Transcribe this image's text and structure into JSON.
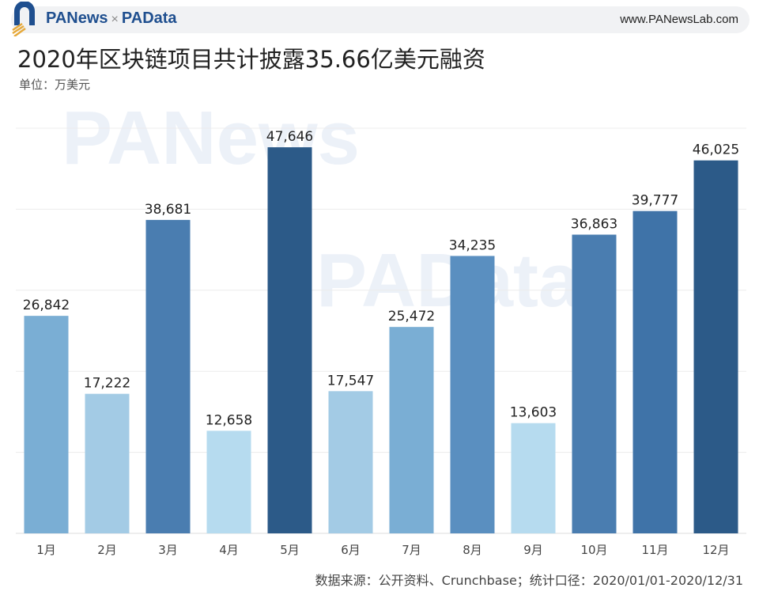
{
  "header": {
    "brand_left": "PANews",
    "brand_sep": "×",
    "brand_right": "PAData",
    "site": "www.PANewsLab.com"
  },
  "watermarks": [
    "PANews",
    "PAData"
  ],
  "footer": {
    "source": "数据来源：公开资料、Crunchbase；统计口径：2020/01/01-2020/12/31"
  },
  "chart_data": {
    "type": "bar",
    "title": "2020年区块链项目共计披露35.66亿美元融资",
    "subtitle": "单位：万美元",
    "categories": [
      "1月",
      "2月",
      "3月",
      "4月",
      "5月",
      "6月",
      "7月",
      "8月",
      "9月",
      "10月",
      "11月",
      "12月"
    ],
    "values": [
      26842,
      17222,
      38681,
      12658,
      47646,
      17547,
      25472,
      34235,
      13603,
      36863,
      39777,
      46025
    ],
    "data_labels": [
      "26,842",
      "17,222",
      "38,681",
      "12,658",
      "47,646",
      "17,547",
      "25,472",
      "34,235",
      "13,603",
      "36,863",
      "39,777",
      "46,025"
    ],
    "colors": [
      "#7aaed4",
      "#a3cbe5",
      "#4a7db0",
      "#b6dbef",
      "#2c5a88",
      "#a3cbe5",
      "#7aaed4",
      "#5a8fc0",
      "#b6dbef",
      "#4a7db0",
      "#3f73a8",
      "#2c5a88"
    ],
    "ylim": [
      0,
      50000
    ],
    "grid": true,
    "grid_step": 10000,
    "xlabel": "",
    "ylabel": ""
  }
}
